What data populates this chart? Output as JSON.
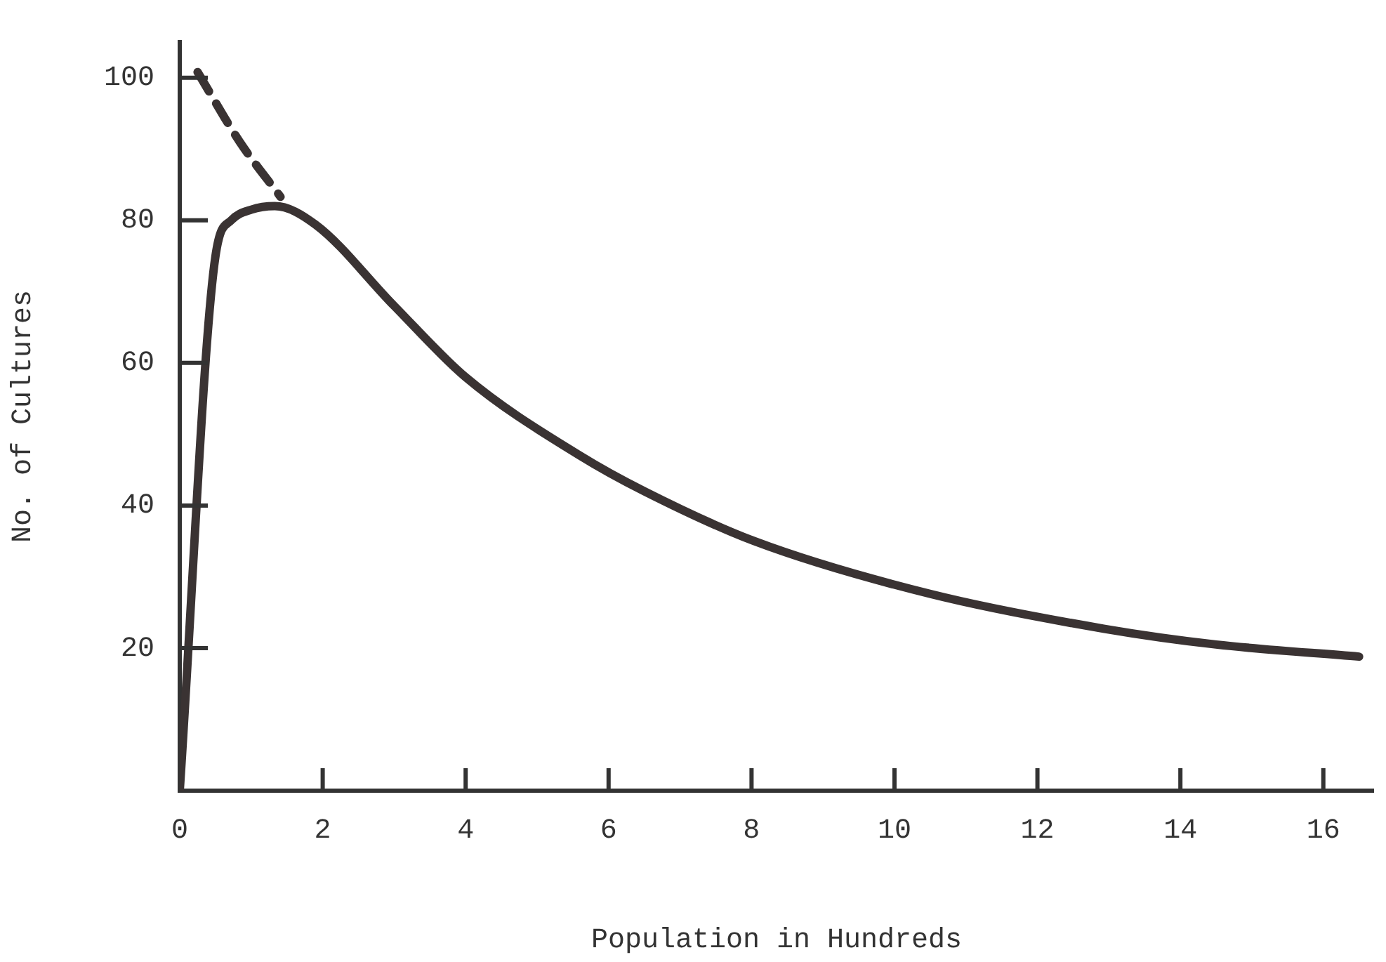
{
  "chart_data": {
    "type": "line",
    "xlabel": "Population in Hundreds",
    "ylabel": "No. of Cultures",
    "xlim": [
      0,
      16.7
    ],
    "ylim": [
      0,
      105
    ],
    "xticks": [
      0,
      2,
      4,
      6,
      8,
      10,
      12,
      14,
      16
    ],
    "yticks": [
      20,
      40,
      60,
      80,
      100
    ],
    "grid": false,
    "legend": false,
    "marker": "none",
    "series": [
      {
        "color": "#3a3333",
        "line_style": "solid",
        "x": [
          0,
          0.5,
          0.72,
          1.0,
          1.33,
          1.9,
          3.0,
          4.0,
          5.6,
          6.5,
          8.04,
          10.5,
          12.94,
          14.5,
          16.5
        ],
        "values": [
          0,
          75,
          80,
          81.5,
          82,
          79.4,
          68,
          58,
          47,
          42,
          35,
          27.6,
          22.7,
          20.5,
          18.8
        ]
      },
      {
        "color": "#3a3333",
        "line_style": "dashed",
        "x": [
          0.25,
          0.84,
          1.41
        ],
        "values": [
          100.8,
          91,
          83.3
        ]
      }
    ]
  }
}
